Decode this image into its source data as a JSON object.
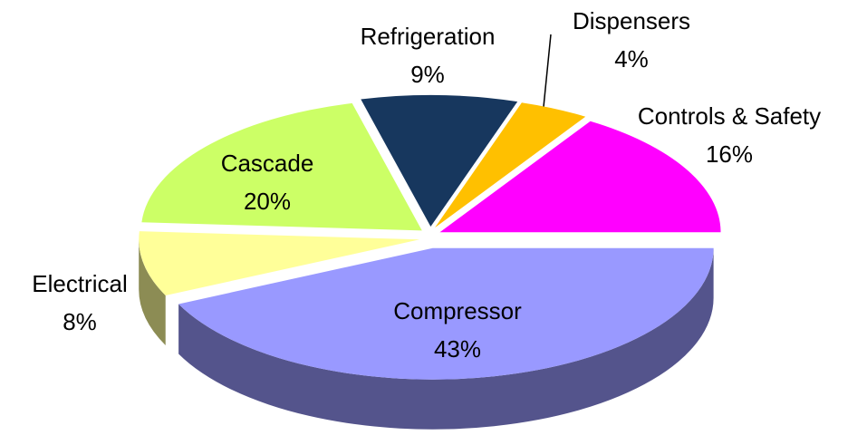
{
  "chart_data": {
    "type": "pie",
    "categories": [
      "Compressor",
      "Electrical",
      "Cascade",
      "Refrigeration",
      "Dispensers",
      "Controls & Safety"
    ],
    "values": [
      43,
      8,
      20,
      9,
      4,
      16
    ],
    "value_labels": [
      "43%",
      "8%",
      "20%",
      "9%",
      "4%",
      "16%"
    ],
    "colors": [
      "#9999ff",
      "#ffff99",
      "#ccff66",
      "#17375e",
      "#ffc000",
      "#ff00ff"
    ]
  }
}
